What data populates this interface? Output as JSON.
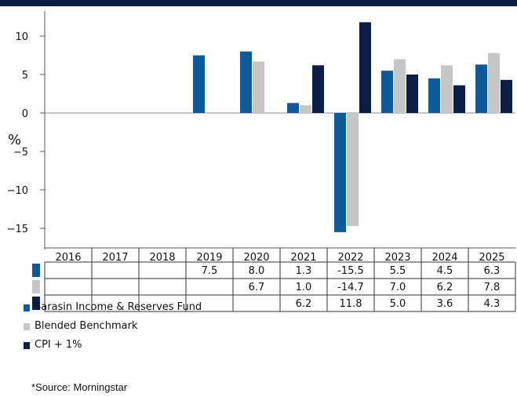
{
  "chart_data": {
    "type": "bar",
    "title": "",
    "xlabel": "",
    "ylabel": "%",
    "ylim": [
      -17.5,
      13.5
    ],
    "yticks": [
      10,
      5,
      0,
      -5,
      -10,
      -15
    ],
    "ytick_labels": [
      "10",
      "5",
      "0",
      "−5",
      "−10",
      "−15"
    ],
    "categories": [
      "2016",
      "2017",
      "2018",
      "2019",
      "2020",
      "2021",
      "2022",
      "2023",
      "2024",
      "2025"
    ],
    "series": [
      {
        "name": "Sarasin Income & Reserves Fund",
        "color": "#0f5a9a",
        "values": [
          null,
          null,
          null,
          7.5,
          8.0,
          1.3,
          -15.5,
          5.5,
          4.5,
          6.3
        ],
        "labels": [
          "",
          "",
          "",
          "7.5",
          "8.0",
          "1.3",
          "-15.5",
          "5.5",
          "4.5",
          "6.3"
        ]
      },
      {
        "name": "Blended Benchmark",
        "color": "#c6c6c6",
        "values": [
          null,
          null,
          null,
          null,
          6.7,
          1.0,
          -14.7,
          7.0,
          6.2,
          7.8
        ],
        "labels": [
          "",
          "",
          "",
          "",
          "6.7",
          "1.0",
          "-14.7",
          "7.0",
          "6.2",
          "7.8"
        ]
      },
      {
        "name": "CPI + 1%",
        "color": "#0b1e45",
        "values": [
          null,
          null,
          null,
          null,
          null,
          6.2,
          11.8,
          5.0,
          3.6,
          4.3
        ],
        "labels": [
          "",
          "",
          "",
          "",
          "",
          "6.2",
          "11.8",
          "5.0",
          "3.6",
          "4.3"
        ]
      }
    ],
    "grid": false,
    "legend": "bottom-left"
  },
  "footer": {
    "source": "*Source: Morningstar"
  }
}
